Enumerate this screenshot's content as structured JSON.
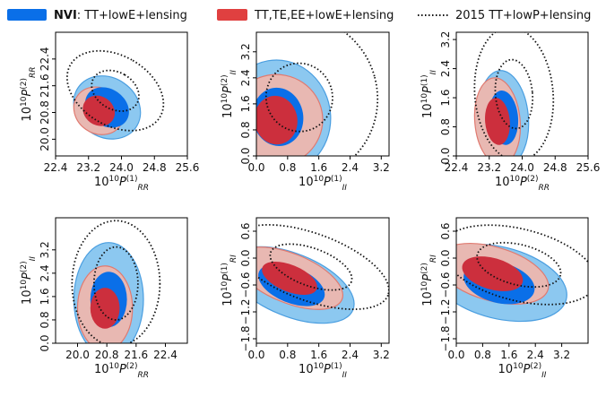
{
  "legend": [
    {
      "label_bold": "NVI",
      "label": ": TT+lowE+lensing",
      "color": "#0a6fe8",
      "style": "fill"
    },
    {
      "label_bold": "",
      "label": "TT,TE,EE+lowE+lensing",
      "color": "#e04040",
      "style": "fill"
    },
    {
      "label_bold": "",
      "label": "2015 TT+lowP+lensing",
      "color": "#111111",
      "style": "dotted"
    }
  ],
  "colors": {
    "nvi_outer": "#8cc8f0",
    "nvi_edge": "#4a9ee0",
    "nvi_inner": "#0a6fe8",
    "red_outer": "#e8b8b2",
    "red_edge": "#e07a70",
    "red_inner": "#cc2f3d"
  },
  "chart_data": [
    {
      "type": "contour",
      "xlabel_main": "10",
      "xlabel_sup": "10",
      "xlabel_sym": "P",
      "xlabel_sub": "RR",
      "xlabel_idx": "(1)",
      "ylabel_main": "10",
      "ylabel_sup": "10",
      "ylabel_sym": "P",
      "ylabel_sub": "RR",
      "ylabel_idx": "(2)",
      "xlim": [
        22.4,
        25.6
      ],
      "ylim": [
        19.5,
        23.2
      ],
      "xticks": [
        "22.4",
        "23.2",
        "24.0",
        "24.8",
        "25.6"
      ],
      "yticks": [
        "20.0",
        "20.8",
        "21.6",
        "22.4"
      ],
      "nvi": {
        "center": [
          23.65,
          20.95
        ],
        "s1": [
          0.45,
          0.7
        ],
        "s2": [
          0.72,
          1.05
        ],
        "angle": 55
      },
      "red": {
        "center": [
          23.45,
          20.85
        ],
        "s1": [
          0.35,
          0.5
        ],
        "s2": [
          0.55,
          0.78
        ],
        "angle": 55
      },
      "p2015": {
        "center": [
          23.85,
          21.45
        ],
        "s1": [
          0.45,
          0.75
        ],
        "s2": [
          0.85,
          1.55
        ],
        "angle": 60
      }
    },
    {
      "type": "contour",
      "xlabel_main": "10",
      "xlabel_sup": "10",
      "xlabel_sym": "P",
      "xlabel_sub": "II",
      "xlabel_idx": "(1)",
      "ylabel_main": "10",
      "ylabel_sup": "10",
      "ylabel_sym": "P",
      "ylabel_sub": "II",
      "ylabel_idx": "(2)",
      "xlim": [
        0.0,
        3.4
      ],
      "ylim": [
        0.0,
        3.8
      ],
      "xticks": [
        "0.0",
        "0.8",
        "1.6",
        "2.4",
        "3.2"
      ],
      "yticks": [
        "0.0",
        "0.8",
        "1.6",
        "2.4",
        "3.2"
      ],
      "nvi": {
        "center": [
          0.55,
          1.2
        ],
        "s1": [
          0.65,
          0.9
        ],
        "s2": [
          1.35,
          1.75
        ],
        "angle": 10
      },
      "red": {
        "center": [
          0.5,
          1.1
        ],
        "s1": [
          0.55,
          0.75
        ],
        "s2": [
          1.2,
          1.4
        ],
        "angle": 10
      },
      "p2015": {
        "center": [
          1.1,
          1.8
        ],
        "s1": [
          0.85,
          1.05
        ],
        "s2": [
          2.0,
          2.5
        ],
        "angle": 15
      }
    },
    {
      "type": "contour",
      "xlabel_main": "10",
      "xlabel_sup": "10",
      "xlabel_sym": "P",
      "xlabel_sub": "RR",
      "xlabel_idx": "(2)",
      "ylabel_main": "10",
      "ylabel_sup": "10",
      "ylabel_sym": "P",
      "ylabel_sub": "II",
      "ylabel_idx": "(1)",
      "xlim": [
        22.4,
        25.6
      ],
      "ylim": [
        0.0,
        3.4
      ],
      "xticks": [
        "22.4",
        "23.2",
        "24.0",
        "24.8",
        "25.6"
      ],
      "yticks": [
        "0.0",
        "0.8",
        "1.6",
        "2.4",
        "3.2"
      ],
      "nvi": {
        "center": [
          23.55,
          1.05
        ],
        "s1": [
          0.35,
          0.75
        ],
        "s2": [
          0.6,
          1.3
        ],
        "angle": 5
      },
      "red": {
        "center": [
          23.4,
          0.95
        ],
        "s1": [
          0.3,
          0.65
        ],
        "s2": [
          0.55,
          1.2
        ],
        "angle": 5
      },
      "p2015": {
        "center": [
          23.8,
          1.7
        ],
        "s1": [
          0.45,
          0.95
        ],
        "s2": [
          0.95,
          1.85
        ],
        "angle": 5
      }
    },
    {
      "type": "contour",
      "xlabel_main": "10",
      "xlabel_sup": "10",
      "xlabel_sym": "P",
      "xlabel_sub": "RR",
      "xlabel_idx": "(2)",
      "ylabel_main": "10",
      "ylabel_sup": "10",
      "ylabel_sym": "P",
      "ylabel_sub": "II",
      "ylabel_idx": "(2)",
      "xlim": [
        19.4,
        23.0
      ],
      "ylim": [
        0.0,
        4.3
      ],
      "xticks": [
        "20.0",
        "20.8",
        "21.6",
        "22.4"
      ],
      "yticks": [
        "0.0",
        "0.8",
        "1.6",
        "2.4",
        "3.2"
      ],
      "nvi": {
        "center": [
          20.85,
          1.5
        ],
        "s1": [
          0.5,
          0.95
        ],
        "s2": [
          0.95,
          1.95
        ],
        "angle": 0
      },
      "red": {
        "center": [
          20.75,
          1.2
        ],
        "s1": [
          0.4,
          0.7
        ],
        "s2": [
          0.75,
          1.45
        ],
        "angle": 0
      },
      "p2015": {
        "center": [
          21.05,
          2.05
        ],
        "s1": [
          0.6,
          1.25
        ],
        "s2": [
          1.2,
          2.15
        ],
        "angle": 0
      }
    },
    {
      "type": "contour",
      "xlabel_main": "10",
      "xlabel_sup": "10",
      "xlabel_sym": "P",
      "xlabel_sub": "II",
      "xlabel_idx": "(1)",
      "ylabel_main": "10",
      "ylabel_sup": "10",
      "ylabel_sym": "P",
      "ylabel_sub": "RI",
      "ylabel_idx": "(1)",
      "xlim": [
        0.0,
        3.4
      ],
      "ylim": [
        -1.9,
        0.9
      ],
      "xticks": [
        "0.0",
        "0.8",
        "1.6",
        "2.4",
        "3.2"
      ],
      "yticks": [
        "−1.8",
        "−1.2",
        "−0.6",
        "0.0",
        "0.6"
      ],
      "nvi": {
        "center": [
          0.9,
          -0.6
        ],
        "s1": [
          0.9,
          0.4
        ],
        "s2": [
          1.7,
          0.7
        ],
        "angle": -22
      },
      "red": {
        "center": [
          0.85,
          -0.45
        ],
        "s1": [
          0.75,
          0.3
        ],
        "s2": [
          1.45,
          0.55
        ],
        "angle": -22
      },
      "p2015": {
        "center": [
          1.4,
          -0.2
        ],
        "s1": [
          1.1,
          0.42
        ],
        "s2": [
          2.1,
          0.75
        ],
        "angle": -20
      }
    },
    {
      "type": "contour",
      "xlabel_main": "10",
      "xlabel_sup": "10",
      "xlabel_sym": "P",
      "xlabel_sub": "II",
      "xlabel_idx": "(2)",
      "ylabel_main": "10",
      "ylabel_sup": "10",
      "ylabel_sym": "P",
      "ylabel_sub": "RI",
      "ylabel_idx": "(2)",
      "xlim": [
        0.0,
        4.0
      ],
      "ylim": [
        -1.9,
        0.9
      ],
      "xticks": [
        "0.0",
        "0.8",
        "1.6",
        "2.4",
        "3.2"
      ],
      "yticks": [
        "−1.8",
        "−1.2",
        "−0.6",
        "0.0",
        "0.6"
      ],
      "nvi": {
        "center": [
          1.3,
          -0.55
        ],
        "s1": [
          1.1,
          0.45
        ],
        "s2": [
          2.1,
          0.8
        ],
        "angle": -14
      },
      "red": {
        "center": [
          1.1,
          -0.35
        ],
        "s1": [
          0.95,
          0.35
        ],
        "s2": [
          1.75,
          0.6
        ],
        "angle": -16
      },
      "p2015": {
        "center": [
          1.9,
          -0.15
        ],
        "s1": [
          1.3,
          0.45
        ],
        "s2": [
          2.4,
          0.8
        ],
        "angle": -14
      }
    }
  ]
}
